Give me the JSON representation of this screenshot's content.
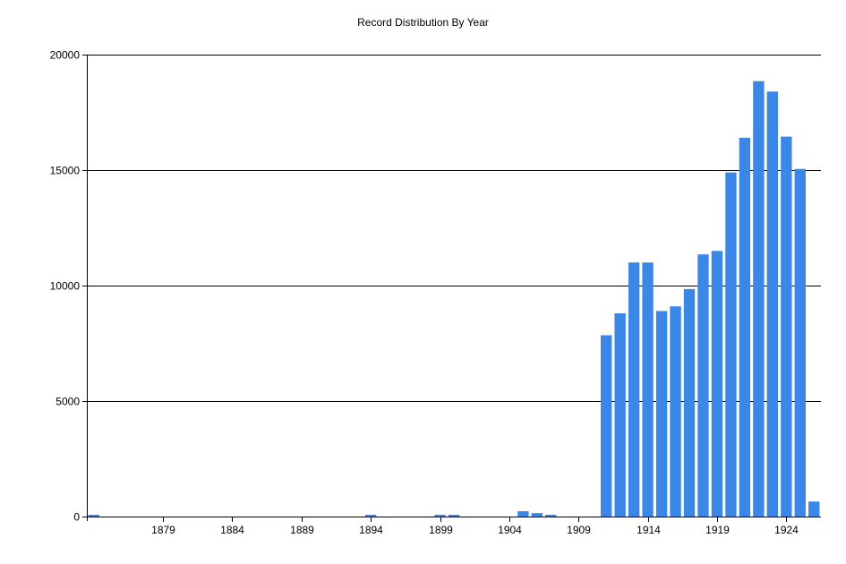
{
  "chart_data": {
    "type": "bar",
    "title": "Record Distribution By Year",
    "xlabel": "",
    "ylabel": "",
    "bar_color": "#3b87e8",
    "grid": true,
    "ylim": [
      0,
      20000
    ],
    "y_ticks": [
      0,
      5000,
      10000,
      15000,
      20000
    ],
    "xlim": [
      1873.5,
      1926.5
    ],
    "x_ticks": [
      1879,
      1884,
      1889,
      1894,
      1899,
      1904,
      1909,
      1914,
      1919,
      1924
    ],
    "x": [
      1874,
      1894,
      1899,
      1900,
      1905,
      1906,
      1907,
      1911,
      1912,
      1913,
      1914,
      1915,
      1916,
      1917,
      1918,
      1919,
      1920,
      1921,
      1922,
      1923,
      1924,
      1925,
      1926
    ],
    "values": [
      60,
      50,
      60,
      60,
      230,
      150,
      80,
      7850,
      8800,
      11000,
      11000,
      8900,
      9100,
      9850,
      11350,
      11500,
      14900,
      16400,
      18850,
      18400,
      16450,
      15050,
      650
    ]
  }
}
